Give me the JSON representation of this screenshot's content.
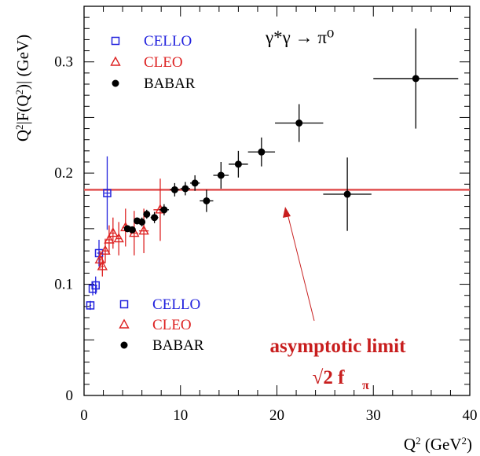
{
  "chart_data": {
    "type": "scatter",
    "title": "",
    "xlabel": "Q² (GeV²)",
    "ylabel": "Q²|F(Q²)| (GeV)",
    "xlim": [
      0,
      40
    ],
    "ylim": [
      0,
      0.35
    ],
    "x_ticks": [
      0,
      10,
      20,
      30,
      40
    ],
    "y_ticks": [
      0,
      0.1,
      0.2,
      0.3
    ],
    "x_tick_labels": [
      "0",
      "10",
      "20",
      "30",
      "40"
    ],
    "y_tick_labels": [
      "0",
      "0.1",
      "0.2",
      "0.3"
    ],
    "grid": false,
    "process_label": "γ*γ → π⁰",
    "legend": {
      "placement": "top-left",
      "entries": [
        {
          "label": "CELLO",
          "marker": "open-square",
          "color": "#2222dd"
        },
        {
          "label": "CLEO",
          "marker": "open-triangle",
          "color": "#dd2222"
        },
        {
          "label": "BABAR",
          "marker": "filled-circle",
          "color": "#000000"
        }
      ]
    },
    "legend2": {
      "placement": "bottom-left",
      "entries": [
        {
          "label": "CELLO",
          "marker": "open-square",
          "color": "#2222dd"
        },
        {
          "label": "CLEO",
          "marker": "open-triangle",
          "color": "#dd2222"
        },
        {
          "label": "BABAR",
          "marker": "filled-circle",
          "color": "#000000"
        }
      ]
    },
    "hline": {
      "y": 0.185,
      "color": "#e05050"
    },
    "annotation": {
      "line1": "asymptotic limit",
      "line2": "√2 f",
      "subscript": "π",
      "color": "#c81e1e"
    },
    "series": [
      {
        "name": "CELLO",
        "marker": "open-square",
        "color": "#2222dd",
        "points": [
          {
            "x": 0.65,
            "y": 0.081,
            "xerr": 0.1,
            "yerr": 0.004
          },
          {
            "x": 0.9,
            "y": 0.096,
            "xerr": 0.1,
            "yerr": 0.006
          },
          {
            "x": 1.2,
            "y": 0.099,
            "xerr": 0.15,
            "yerr": 0.008
          },
          {
            "x": 1.55,
            "y": 0.128,
            "xerr": 0.2,
            "yerr": 0.012
          },
          {
            "x": 2.4,
            "y": 0.182,
            "xerr": 0.3,
            "yerr": 0.033
          }
        ]
      },
      {
        "name": "CLEO",
        "marker": "open-triangle",
        "color": "#dd2222",
        "points": [
          {
            "x": 1.65,
            "y": 0.122,
            "xerr": 0.15,
            "yerr": 0.008
          },
          {
            "x": 1.9,
            "y": 0.116,
            "xerr": 0.15,
            "yerr": 0.009
          },
          {
            "x": 2.2,
            "y": 0.13,
            "xerr": 0.2,
            "yerr": 0.011
          },
          {
            "x": 2.6,
            "y": 0.14,
            "xerr": 0.25,
            "yerr": 0.013
          },
          {
            "x": 3.0,
            "y": 0.146,
            "xerr": 0.25,
            "yerr": 0.014
          },
          {
            "x": 3.6,
            "y": 0.141,
            "xerr": 0.3,
            "yerr": 0.015
          },
          {
            "x": 4.3,
            "y": 0.151,
            "xerr": 0.35,
            "yerr": 0.017
          },
          {
            "x": 5.2,
            "y": 0.146,
            "xerr": 0.4,
            "yerr": 0.02
          },
          {
            "x": 6.2,
            "y": 0.148,
            "xerr": 0.5,
            "yerr": 0.02
          },
          {
            "x": 7.9,
            "y": 0.167,
            "xerr": 0.7,
            "yerr": 0.028
          }
        ]
      },
      {
        "name": "BABAR",
        "marker": "filled-circle",
        "color": "#000000",
        "points": [
          {
            "x": 4.5,
            "y": 0.15,
            "xerr": 0.3,
            "yerr": 0.003
          },
          {
            "x": 5.0,
            "y": 0.149,
            "xerr": 0.3,
            "yerr": 0.003
          },
          {
            "x": 5.5,
            "y": 0.157,
            "xerr": 0.3,
            "yerr": 0.003
          },
          {
            "x": 6.0,
            "y": 0.156,
            "xerr": 0.3,
            "yerr": 0.004
          },
          {
            "x": 6.5,
            "y": 0.163,
            "xerr": 0.3,
            "yerr": 0.004
          },
          {
            "x": 7.3,
            "y": 0.16,
            "xerr": 0.4,
            "yerr": 0.005
          },
          {
            "x": 8.3,
            "y": 0.167,
            "xerr": 0.5,
            "yerr": 0.005
          },
          {
            "x": 9.4,
            "y": 0.185,
            "xerr": 0.5,
            "yerr": 0.006
          },
          {
            "x": 10.5,
            "y": 0.186,
            "xerr": 0.5,
            "yerr": 0.006
          },
          {
            "x": 11.5,
            "y": 0.191,
            "xerr": 0.5,
            "yerr": 0.007
          },
          {
            "x": 12.7,
            "y": 0.175,
            "xerr": 0.7,
            "yerr": 0.01
          },
          {
            "x": 14.2,
            "y": 0.198,
            "xerr": 0.8,
            "yerr": 0.012
          },
          {
            "x": 16.0,
            "y": 0.208,
            "xerr": 1.0,
            "yerr": 0.012
          },
          {
            "x": 18.4,
            "y": 0.219,
            "xerr": 1.4,
            "yerr": 0.013
          },
          {
            "x": 22.3,
            "y": 0.245,
            "xerr": 2.5,
            "yerr": 0.017
          },
          {
            "x": 27.3,
            "y": 0.181,
            "xerr": 2.5,
            "yerr": 0.033
          },
          {
            "x": 34.4,
            "y": 0.285,
            "xerr": 4.4,
            "yerr": 0.045
          }
        ]
      }
    ]
  }
}
